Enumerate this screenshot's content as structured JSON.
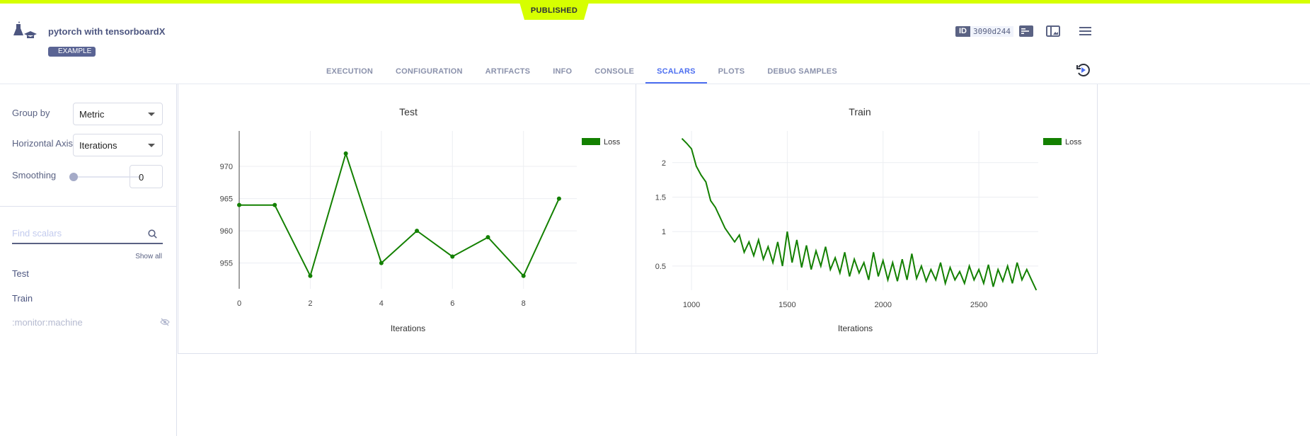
{
  "header": {
    "status_badge": "PUBLISHED",
    "title": "pytorch with tensorboardX",
    "tag": "EXAMPLE",
    "id_label": "ID",
    "id_value": "3090d244"
  },
  "tabs": [
    {
      "label": "EXECUTION"
    },
    {
      "label": "CONFIGURATION"
    },
    {
      "label": "ARTIFACTS"
    },
    {
      "label": "INFO"
    },
    {
      "label": "CONSOLE"
    },
    {
      "label": "SCALARS",
      "active": true
    },
    {
      "label": "PLOTS"
    },
    {
      "label": "DEBUG SAMPLES"
    }
  ],
  "sidebar": {
    "group_by_label": "Group by",
    "group_by_value": "Metric",
    "haxis_label": "Horizontal Axis",
    "haxis_value": "Iterations",
    "smoothing_label": "Smoothing",
    "smoothing_value": "0",
    "smoothing_level": 0,
    "find_placeholder": "Find scalars",
    "show_all": "Show all",
    "items": [
      {
        "label": "Test"
      },
      {
        "label": "Train"
      },
      {
        "label": ":monitor:machine",
        "hidden": true
      }
    ]
  },
  "colors": {
    "accent": "#4d6ff0",
    "published": "#d6ff00",
    "series": "#138000"
  },
  "chart_data": [
    {
      "type": "line",
      "title": "Test",
      "xlabel": "Iterations",
      "xlim": [
        0,
        9.5
      ],
      "ylim": [
        951,
        975.5
      ],
      "xticks": [
        0,
        2,
        4,
        6,
        8
      ],
      "yticks": [
        955,
        960,
        965,
        970
      ],
      "grid": true,
      "legend": "top-right",
      "markers": true,
      "series": [
        {
          "name": "Loss",
          "x": [
            0,
            1,
            2,
            3,
            4,
            5,
            6,
            7,
            8,
            9
          ],
          "y": [
            964,
            964,
            953,
            972,
            955,
            960,
            956,
            959,
            953,
            965
          ]
        }
      ]
    },
    {
      "type": "line",
      "title": "Train",
      "xlabel": "Iterations",
      "xlim": [
        900,
        2810
      ],
      "ylim": [
        0.15,
        2.46
      ],
      "xticks": [
        1000,
        1500,
        2000,
        2500
      ],
      "yticks": [
        0.5,
        1,
        1.5,
        2
      ],
      "ytick_labels": [
        "0.5",
        "1",
        "1.5",
        "2"
      ],
      "grid": true,
      "legend": "top-right",
      "markers": false,
      "series": [
        {
          "name": "Loss",
          "x": [
            950,
            975,
            1000,
            1025,
            1050,
            1075,
            1100,
            1125,
            1150,
            1175,
            1200,
            1225,
            1250,
            1275,
            1300,
            1325,
            1350,
            1375,
            1400,
            1425,
            1450,
            1475,
            1500,
            1525,
            1550,
            1575,
            1600,
            1625,
            1650,
            1675,
            1700,
            1725,
            1750,
            1775,
            1800,
            1825,
            1850,
            1875,
            1900,
            1925,
            1950,
            1975,
            2000,
            2025,
            2050,
            2075,
            2100,
            2125,
            2150,
            2175,
            2200,
            2225,
            2250,
            2275,
            2300,
            2325,
            2350,
            2375,
            2400,
            2425,
            2450,
            2475,
            2500,
            2525,
            2550,
            2575,
            2600,
            2625,
            2650,
            2675,
            2700,
            2725,
            2750,
            2775,
            2800
          ],
          "y": [
            2.35,
            2.28,
            2.2,
            1.95,
            1.82,
            1.72,
            1.45,
            1.35,
            1.2,
            1.05,
            0.95,
            0.85,
            0.95,
            0.7,
            0.85,
            0.65,
            0.88,
            0.6,
            0.78,
            0.55,
            0.85,
            0.5,
            1.0,
            0.55,
            0.88,
            0.48,
            0.8,
            0.45,
            0.72,
            0.5,
            0.78,
            0.45,
            0.62,
            0.4,
            0.7,
            0.35,
            0.6,
            0.4,
            0.55,
            0.3,
            0.7,
            0.35,
            0.58,
            0.3,
            0.55,
            0.28,
            0.6,
            0.3,
            0.68,
            0.32,
            0.5,
            0.28,
            0.45,
            0.3,
            0.55,
            0.25,
            0.48,
            0.3,
            0.42,
            0.25,
            0.5,
            0.3,
            0.45,
            0.25,
            0.52,
            0.2,
            0.45,
            0.28,
            0.5,
            0.25,
            0.55,
            0.3,
            0.45,
            0.3,
            0.15
          ]
        }
      ]
    }
  ]
}
